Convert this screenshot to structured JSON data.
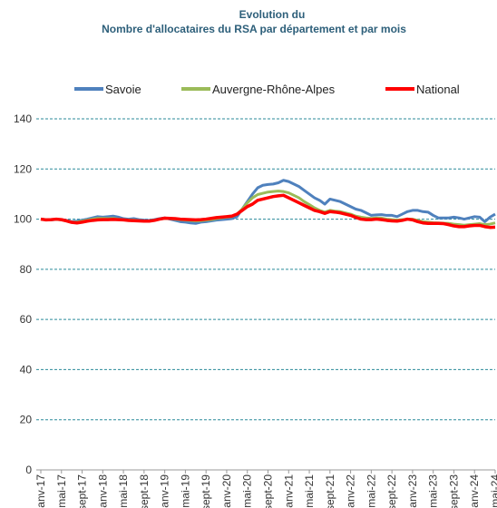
{
  "chart_data": {
    "type": "line",
    "title": "Evolution du",
    "subtitle": "Nombre d'allocataires du RSA par département et par mois",
    "categories": [
      "janv-17",
      null,
      null,
      null,
      "mai-17",
      null,
      null,
      null,
      "sept-17",
      null,
      null,
      null,
      "janv-18",
      null,
      null,
      null,
      "mai-18",
      null,
      null,
      null,
      "sept-18",
      null,
      null,
      null,
      "janv-19",
      null,
      null,
      null,
      "mai-19",
      null,
      null,
      null,
      "sept-19",
      null,
      null,
      null,
      "janv-20",
      null,
      null,
      null,
      "mai-20",
      null,
      null,
      null,
      "sept-20",
      null,
      null,
      null,
      "janv-21",
      null,
      null,
      null,
      "mai-21",
      null,
      null,
      null,
      "sept-21",
      null,
      null,
      null,
      "janv-22",
      null,
      null,
      null,
      "mai-22",
      null,
      null,
      null,
      "sept-22",
      null,
      null,
      null,
      "janv-23",
      null,
      null,
      null,
      "mai-23",
      null,
      null,
      null,
      "sept-23",
      null,
      null,
      null,
      "janv-24",
      null,
      null,
      null,
      "mai-24"
    ],
    "series": [
      {
        "name": "Savoie",
        "color": "#4f81bd",
        "values": [
          100,
          99.8,
          99.7,
          99.9,
          99.8,
          99.5,
          99,
          99.2,
          99.6,
          100,
          100.5,
          101,
          100.8,
          101,
          101.2,
          100.8,
          100.2,
          100,
          100.2,
          99.8,
          99.6,
          99.5,
          99.8,
          100.2,
          100.5,
          100,
          99.5,
          99,
          98.8,
          98.5,
          98.3,
          98.8,
          99,
          99.3,
          99.6,
          99.8,
          100,
          100.2,
          101,
          104,
          107,
          110,
          112.5,
          113.5,
          113.8,
          114,
          114.5,
          115.5,
          115,
          114,
          113,
          111.5,
          110,
          108.5,
          107.5,
          106,
          108,
          107.5,
          107,
          106,
          105,
          104,
          103.5,
          102.5,
          101.5,
          101.7,
          101.8,
          101.5,
          101.5,
          101,
          102,
          103,
          103.5,
          103.5,
          103,
          102.8,
          101.5,
          100.5,
          100.5,
          100.5,
          100.8,
          100.5,
          100,
          100.5,
          101,
          100.8,
          99,
          100.8,
          102
        ]
      },
      {
        "name": "Auvergne-Rhône-Alpes",
        "color": "#9bbb59",
        "values": [
          100,
          99.8,
          99.8,
          99.9,
          99.7,
          99.3,
          98.8,
          98.8,
          99.2,
          99.6,
          100,
          100.3,
          100.3,
          100.2,
          100.3,
          100,
          99.8,
          99.6,
          99.6,
          99.4,
          99.3,
          99.3,
          99.6,
          100,
          100.3,
          100.2,
          100,
          99.8,
          99.6,
          99.5,
          99.3,
          99.4,
          99.6,
          99.8,
          100.2,
          100.5,
          100.8,
          101,
          102,
          104,
          106.5,
          108.5,
          109.8,
          110.3,
          110.8,
          111,
          111.2,
          111,
          110.5,
          109.5,
          108.5,
          107,
          105.8,
          104.5,
          103.5,
          102.8,
          103.5,
          103.2,
          103,
          102.5,
          102,
          101.2,
          100.8,
          100.5,
          100.3,
          100.5,
          100.4,
          100,
          99.8,
          99.6,
          99.8,
          100,
          100,
          99.5,
          99,
          98.8,
          98.6,
          98.5,
          98.4,
          98.3,
          98,
          97.8,
          97.6,
          97.8,
          98,
          98.2,
          97.8,
          98,
          98.5
        ]
      },
      {
        "name": "National",
        "color": "#ff0000",
        "values": [
          100,
          99.7,
          99.8,
          100,
          99.8,
          99.3,
          98.7,
          98.5,
          98.8,
          99.2,
          99.5,
          99.7,
          99.8,
          99.8,
          99.9,
          99.8,
          99.7,
          99.5,
          99.4,
          99.3,
          99.2,
          99.2,
          99.5,
          100,
          100.4,
          100.3,
          100.2,
          100,
          99.9,
          99.8,
          99.7,
          99.8,
          100,
          100.3,
          100.6,
          100.8,
          101,
          101.2,
          102,
          103.5,
          105,
          106,
          107.5,
          108,
          108.5,
          109,
          109.3,
          109.5,
          108.5,
          107.5,
          106.5,
          105.5,
          104.5,
          103.5,
          103,
          102.3,
          103,
          102.8,
          102.5,
          102,
          101.5,
          100.7,
          100,
          99.8,
          99.8,
          100,
          99.8,
          99.5,
          99.3,
          99.2,
          99.5,
          100,
          99.7,
          99,
          98.5,
          98.3,
          98.3,
          98.3,
          98.2,
          97.8,
          97.3,
          97,
          97,
          97.3,
          97.5,
          97.5,
          97,
          96.7,
          96.8
        ]
      }
    ],
    "ylim": [
      0,
      140
    ],
    "yticks": [
      0,
      20,
      40,
      60,
      80,
      100,
      120,
      140
    ],
    "grid": true,
    "legend": "top"
  }
}
